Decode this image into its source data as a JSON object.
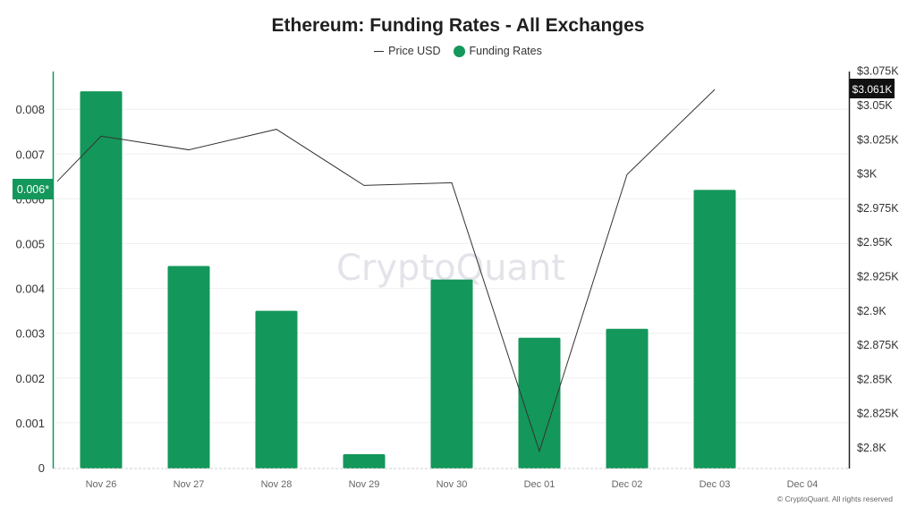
{
  "header": {
    "title": "Ethereum: Funding Rates - All Exchanges"
  },
  "legend": {
    "items": [
      {
        "label": "Price USD",
        "type": "line",
        "color": "#333333"
      },
      {
        "label": "Funding Rates",
        "type": "dot",
        "color": "#14975a"
      }
    ]
  },
  "watermark": "CryptoQuant",
  "copyright": "© CryptoQuant. All rights reserved",
  "crosshair": {
    "left_label": "0.006*",
    "right_label": "$3.061K"
  },
  "colors": {
    "bar": "#14975a",
    "line": "#333333",
    "left_axis": "#14975a",
    "right_axis": "#222222",
    "grid": "#f0f0f0",
    "right_badge_bg": "#111111"
  },
  "chart_data": {
    "type": "bar",
    "title": "Ethereum: Funding Rates - All Exchanges",
    "categories": [
      "Nov 26",
      "Nov 27",
      "Nov 28",
      "Nov 29",
      "Nov 30",
      "Dec 01",
      "Dec 02",
      "Dec 03",
      "Dec 04"
    ],
    "series": [
      {
        "name": "Funding Rates",
        "type": "bar",
        "axis": "left",
        "values": [
          0.0084,
          0.0045,
          0.0035,
          0.0003,
          0.0042,
          0.0029,
          0.0031,
          0.0062,
          null
        ]
      },
      {
        "name": "Price USD",
        "type": "line",
        "axis": "right",
        "start_value": 2994,
        "values": [
          3027,
          3017,
          3032,
          2991,
          2993,
          2797,
          2999,
          3061,
          null
        ]
      }
    ],
    "left_axis": {
      "ticks": [
        "0",
        "0.001",
        "0.002",
        "0.003",
        "0.004",
        "0.005",
        "0.006",
        "0.007",
        "0.008"
      ],
      "ylim": [
        0,
        0.0088
      ]
    },
    "right_axis": {
      "ticks": [
        "$2.8K",
        "$2.825K",
        "$2.85K",
        "$2.875K",
        "$2.9K",
        "$2.925K",
        "$2.95K",
        "$2.975K",
        "$3K",
        "$3.025K",
        "$3.05K",
        "$3.075K"
      ],
      "ylim": [
        2785,
        3075
      ]
    },
    "xlabel": "",
    "ylabel": "",
    "grid": true,
    "legend_position": "top"
  }
}
